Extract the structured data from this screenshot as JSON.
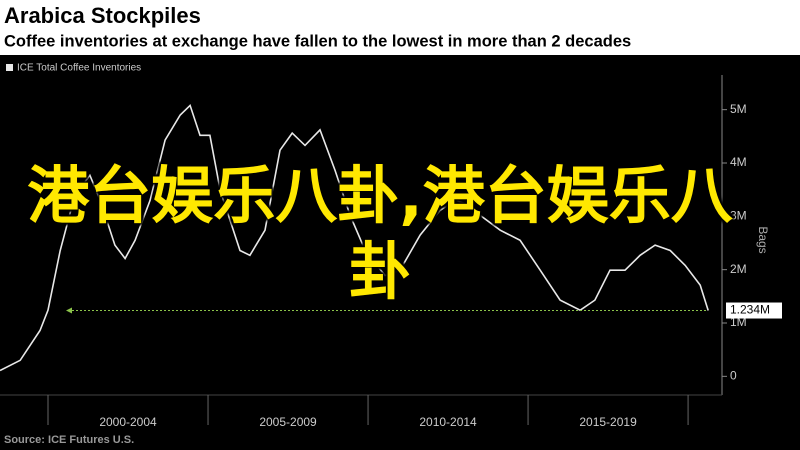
{
  "chart_data": {
    "type": "line",
    "title": "Arabica Stockpiles",
    "subtitle": "Coffee inventories at exchange have fallen to the lowest in more than 2 decades",
    "y_label": "Bags",
    "source": "Source: ICE Futures U.S.",
    "overlay_text": "港台娱乐八卦,港台娱乐八卦",
    "categories": [
      "2000-2004",
      "2005-2009",
      "2010-2014",
      "2015-2019"
    ],
    "xticks": [
      2000,
      2005,
      2010,
      2015,
      2020
    ],
    "xlim": [
      1998.5,
      2021.06
    ],
    "ylim": [
      -350000,
      5650000
    ],
    "yticks": [
      0,
      {
        "value": 1000000,
        "label": "1M"
      },
      {
        "value": 2000000,
        "label": "2M"
      },
      {
        "value": 3000000,
        "label": "3M"
      },
      {
        "value": 4000000,
        "label": "4M"
      },
      {
        "value": 5000000,
        "label": "5M"
      }
    ],
    "grid": false,
    "last_value": {
      "value": 1234000,
      "label": "1.234M",
      "color": "#8bc34a"
    },
    "series": [
      {
        "name": "ICE Total Coffee Inventories",
        "color": "#e8e8e8",
        "x": [
          1998.5,
          1999.13,
          1999.75,
          2000,
          2000.38,
          2000.84,
          2001.31,
          2001.63,
          2002.09,
          2002.41,
          2002.72,
          2003.19,
          2003.66,
          2004.13,
          2004.44,
          2004.75,
          2005.06,
          2005.38,
          2006,
          2006.31,
          2006.78,
          2007.25,
          2007.63,
          2008.03,
          2008.5,
          2008.97,
          2009.44,
          2009.91,
          2010.53,
          2011,
          2011.63,
          2012.25,
          2012.72,
          2013.19,
          2013.5,
          2014.13,
          2014.75,
          2015.38,
          2016,
          2016.63,
          2017.09,
          2017.56,
          2018.03,
          2018.5,
          2018.97,
          2019.44,
          2019.91,
          2020.38,
          2020.63
        ],
        "values": [
          110000,
          300000,
          860000,
          1240000,
          2360000,
          3400000,
          3770000,
          3300000,
          2460000,
          2210000,
          2550000,
          3300000,
          4430000,
          4900000,
          5080000,
          4520000,
          4520000,
          3490000,
          2360000,
          2270000,
          2740000,
          4240000,
          4560000,
          4330000,
          4620000,
          3860000,
          3020000,
          2360000,
          1890000,
          1990000,
          2650000,
          3110000,
          3300000,
          3210000,
          3020000,
          2740000,
          2550000,
          1990000,
          1430000,
          1240000,
          1430000,
          1990000,
          1990000,
          2270000,
          2460000,
          2360000,
          2080000,
          1710000,
          1234000
        ]
      }
    ]
  }
}
